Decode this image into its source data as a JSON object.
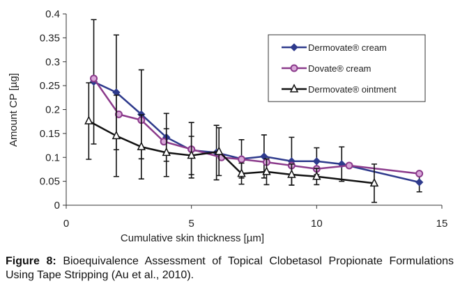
{
  "chart_data": {
    "type": "line",
    "xlabel": "Cumulative skin thickness [µm]",
    "ylabel": "Amount CP  [µg]",
    "xlim": [
      0,
      15
    ],
    "xticks": [
      0,
      5,
      10,
      15
    ],
    "ylim": [
      0,
      0.4
    ],
    "yticks": [
      0,
      0.05,
      0.1,
      0.15,
      0.2,
      0.25,
      0.3,
      0.35,
      0.4
    ],
    "grid": false,
    "legend": "upper right",
    "series": [
      {
        "name": "Dermovate® cream",
        "color": "#2e3a8c",
        "marker": "diamond",
        "x": [
          1.1,
          2.0,
          3.0,
          4.0,
          5.0,
          6.0,
          7.0,
          7.9,
          9.0,
          10.0,
          11.0,
          14.1
        ],
        "values": [
          0.258,
          0.236,
          0.19,
          0.142,
          0.115,
          0.11,
          0.097,
          0.102,
          0.092,
          0.092,
          0.086,
          0.048
        ],
        "errors": [
          0.13,
          0.12,
          0.093,
          0.05,
          0.058,
          0.057,
          0.04,
          0.045,
          0.05,
          0.028,
          0.036,
          0.02
        ]
      },
      {
        "name": "Dovate® cream",
        "color": "#8b3a8b",
        "marker": "circle",
        "x": [
          1.1,
          2.1,
          3.0,
          3.9,
          5.0,
          6.2,
          7.0,
          8.0,
          9.0,
          10.0,
          11.3,
          14.1
        ],
        "values": [
          0.265,
          0.19,
          0.178,
          0.133,
          0.117,
          0.1,
          0.096,
          0.09,
          0.083,
          0.076,
          0.083,
          0.066
        ]
      },
      {
        "name": "Dermovate® ointment",
        "color": "#111111",
        "marker": "triangle",
        "x": [
          0.9,
          2.0,
          3.0,
          4.0,
          5.0,
          6.1,
          7.0,
          8.0,
          9.0,
          10.0,
          12.3
        ],
        "values": [
          0.176,
          0.145,
          0.122,
          0.11,
          0.104,
          0.112,
          0.066,
          0.07,
          0.064,
          0.06,
          0.046
        ],
        "errors": [
          0.08,
          0.085,
          0.067,
          0.05,
          0.04,
          0.05,
          0.022,
          0.027,
          0.022,
          0.017,
          0.04
        ]
      }
    ]
  },
  "caption": {
    "label": "Figure 8:",
    "text": "Bioequivalence Assessment of Topical Clobetasol Propionate Formulations Using Tape Stripping (Au et al., 2010)."
  }
}
